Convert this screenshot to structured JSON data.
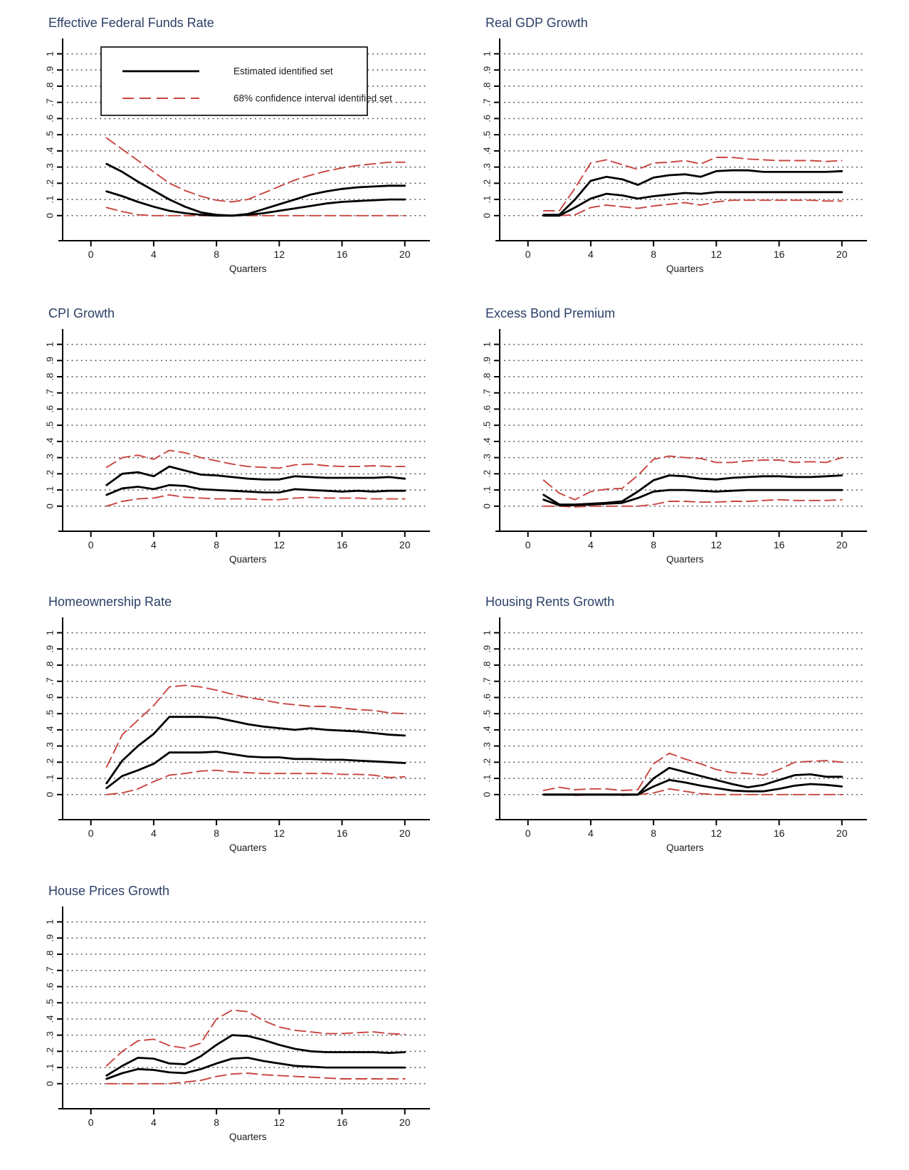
{
  "figure": {
    "description": "Impulse response functions over quarters, 7 panels",
    "xlabel": "Quarters"
  },
  "colors": {
    "title": "#2b3f67",
    "line_black": "#000000",
    "line_red": "#c8453f",
    "grid": "#4c4c4c",
    "axis": "#000000",
    "text": "#1a1a1a",
    "background": "#ffffff"
  },
  "legend": {
    "items": [
      {
        "label": "Estimated identified set",
        "style": "solid-black"
      },
      {
        "label": "68% confidence interval identified set",
        "style": "dashed-red"
      }
    ]
  },
  "axis": {
    "xlabel": "Quarters",
    "x_ticks": [
      0,
      4,
      8,
      12,
      16,
      20
    ],
    "y_ticks": [
      "0",
      ".1",
      ".2",
      ".3",
      ".4",
      ".5",
      ".6",
      ".7",
      ".8",
      ".9",
      "1"
    ],
    "xlim": [
      0,
      20
    ],
    "ylim": [
      0,
      1
    ],
    "grid": "dotted horizontal"
  },
  "chart_data": [
    {
      "type": "line",
      "title": "Effective Federal Funds Rate",
      "xlabel": "Quarters",
      "show_legend": true,
      "x": [
        1,
        2,
        3,
        4,
        5,
        6,
        7,
        8,
        9,
        10,
        11,
        12,
        13,
        14,
        15,
        16,
        17,
        18,
        19,
        20
      ],
      "series": [
        {
          "name": "68% confidence interval (upper bound)",
          "style": "dashed-red",
          "values": [
            0.48,
            0.41,
            0.34,
            0.27,
            0.2,
            0.155,
            0.12,
            0.095,
            0.085,
            0.1,
            0.14,
            0.18,
            0.22,
            0.25,
            0.275,
            0.295,
            0.31,
            0.32,
            0.33,
            0.33
          ]
        },
        {
          "name": "68% confidence interval (lower bound)",
          "style": "dashed-red",
          "values": [
            0.05,
            0.025,
            0.005,
            0,
            0,
            0,
            0,
            0,
            0,
            0,
            0,
            0,
            0,
            0,
            0,
            0,
            0,
            0,
            0,
            0
          ]
        },
        {
          "name": "Estimated identified set (upper bound)",
          "style": "solid-black",
          "values": [
            0.32,
            0.27,
            0.21,
            0.155,
            0.1,
            0.055,
            0.02,
            0.005,
            0.0,
            0.01,
            0.04,
            0.07,
            0.1,
            0.13,
            0.15,
            0.165,
            0.175,
            0.18,
            0.185,
            0.185
          ]
        },
        {
          "name": "Estimated identified set (lower bound)",
          "style": "solid-black",
          "values": [
            0.15,
            0.12,
            0.085,
            0.055,
            0.03,
            0.015,
            0.005,
            0.0,
            0.0,
            0.005,
            0.015,
            0.03,
            0.045,
            0.06,
            0.075,
            0.085,
            0.09,
            0.095,
            0.1,
            0.1
          ]
        }
      ]
    },
    {
      "type": "line",
      "title": "Real GDP Growth",
      "xlabel": "Quarters",
      "show_legend": false,
      "x": [
        1,
        2,
        3,
        4,
        5,
        6,
        7,
        8,
        9,
        10,
        11,
        12,
        13,
        14,
        15,
        16,
        17,
        18,
        19,
        20
      ],
      "series": [
        {
          "name": "68% confidence interval (upper bound)",
          "style": "dashed-red",
          "values": [
            0.03,
            0.03,
            0.17,
            0.325,
            0.345,
            0.315,
            0.285,
            0.325,
            0.33,
            0.34,
            0.32,
            0.36,
            0.36,
            0.35,
            0.345,
            0.34,
            0.34,
            0.34,
            0.335,
            0.34
          ]
        },
        {
          "name": "68% confidence interval (lower bound)",
          "style": "dashed-red",
          "values": [
            0.0,
            0.0,
            0.005,
            0.05,
            0.065,
            0.055,
            0.045,
            0.06,
            0.07,
            0.08,
            0.065,
            0.085,
            0.095,
            0.095,
            0.095,
            0.095,
            0.095,
            0.095,
            0.09,
            0.09
          ]
        },
        {
          "name": "Estimated identified set (upper bound)",
          "style": "solid-black",
          "values": [
            0.005,
            0.005,
            0.1,
            0.215,
            0.24,
            0.225,
            0.19,
            0.235,
            0.25,
            0.255,
            0.24,
            0.275,
            0.28,
            0.28,
            0.27,
            0.27,
            0.27,
            0.27,
            0.27,
            0.275
          ]
        },
        {
          "name": "Estimated identified set (lower bound)",
          "style": "solid-black",
          "values": [
            0.0,
            0.0,
            0.05,
            0.105,
            0.135,
            0.125,
            0.105,
            0.12,
            0.13,
            0.14,
            0.135,
            0.145,
            0.145,
            0.145,
            0.145,
            0.145,
            0.145,
            0.145,
            0.145,
            0.145
          ]
        }
      ]
    },
    {
      "type": "line",
      "title": "CPI Growth",
      "xlabel": "Quarters",
      "show_legend": false,
      "x": [
        1,
        2,
        3,
        4,
        5,
        6,
        7,
        8,
        9,
        10,
        11,
        12,
        13,
        14,
        15,
        16,
        17,
        18,
        19,
        20
      ],
      "series": [
        {
          "name": "68% confidence interval (upper bound)",
          "style": "dashed-red",
          "values": [
            0.24,
            0.3,
            0.315,
            0.29,
            0.345,
            0.33,
            0.3,
            0.28,
            0.26,
            0.245,
            0.24,
            0.235,
            0.255,
            0.26,
            0.25,
            0.245,
            0.245,
            0.25,
            0.245,
            0.245
          ]
        },
        {
          "name": "68% confidence interval (lower bound)",
          "style": "dashed-red",
          "values": [
            0.0,
            0.03,
            0.045,
            0.05,
            0.07,
            0.055,
            0.05,
            0.045,
            0.045,
            0.045,
            0.04,
            0.04,
            0.05,
            0.055,
            0.05,
            0.05,
            0.05,
            0.045,
            0.045,
            0.045
          ]
        },
        {
          "name": "Estimated identified set (upper bound)",
          "style": "solid-black",
          "values": [
            0.13,
            0.2,
            0.21,
            0.185,
            0.245,
            0.22,
            0.195,
            0.19,
            0.18,
            0.17,
            0.165,
            0.165,
            0.185,
            0.18,
            0.175,
            0.175,
            0.175,
            0.175,
            0.18,
            0.17
          ]
        },
        {
          "name": "Estimated identified set (lower bound)",
          "style": "solid-black",
          "values": [
            0.07,
            0.11,
            0.12,
            0.105,
            0.13,
            0.125,
            0.105,
            0.1,
            0.095,
            0.09,
            0.085,
            0.085,
            0.105,
            0.1,
            0.095,
            0.09,
            0.095,
            0.09,
            0.095,
            0.095
          ]
        }
      ]
    },
    {
      "type": "line",
      "title": "Excess Bond Premium",
      "xlabel": "Quarters",
      "show_legend": false,
      "x": [
        1,
        2,
        3,
        4,
        5,
        6,
        7,
        8,
        9,
        10,
        11,
        12,
        13,
        14,
        15,
        16,
        17,
        18,
        19,
        20
      ],
      "series": [
        {
          "name": "68% confidence interval (upper bound)",
          "style": "dashed-red",
          "values": [
            0.16,
            0.08,
            0.04,
            0.09,
            0.105,
            0.11,
            0.19,
            0.29,
            0.31,
            0.3,
            0.295,
            0.27,
            0.27,
            0.28,
            0.285,
            0.285,
            0.27,
            0.275,
            0.27,
            0.3
          ]
        },
        {
          "name": "68% confidence interval (lower bound)",
          "style": "dashed-red",
          "values": [
            0.0,
            0.0,
            -0.005,
            0.0,
            0.0,
            0.0,
            0.0,
            0.01,
            0.03,
            0.03,
            0.025,
            0.025,
            0.03,
            0.03,
            0.035,
            0.04,
            0.035,
            0.035,
            0.035,
            0.04
          ]
        },
        {
          "name": "Estimated identified set (upper bound)",
          "style": "solid-black",
          "values": [
            0.07,
            0.01,
            0.01,
            0.015,
            0.02,
            0.03,
            0.09,
            0.16,
            0.19,
            0.185,
            0.17,
            0.165,
            0.175,
            0.18,
            0.185,
            0.185,
            0.18,
            0.18,
            0.185,
            0.19
          ]
        },
        {
          "name": "Estimated identified set (lower bound)",
          "style": "solid-black",
          "values": [
            0.04,
            0.005,
            0.005,
            0.01,
            0.015,
            0.02,
            0.05,
            0.09,
            0.1,
            0.1,
            0.095,
            0.09,
            0.095,
            0.1,
            0.1,
            0.1,
            0.1,
            0.1,
            0.1,
            0.1
          ]
        }
      ]
    },
    {
      "type": "line",
      "title": "Homeownership Rate",
      "xlabel": "Quarters",
      "show_legend": false,
      "x": [
        1,
        2,
        3,
        4,
        5,
        6,
        7,
        8,
        9,
        10,
        11,
        12,
        13,
        14,
        15,
        16,
        17,
        18,
        19,
        20
      ],
      "series": [
        {
          "name": "68% confidence interval (upper bound)",
          "style": "dashed-red",
          "values": [
            0.17,
            0.37,
            0.46,
            0.55,
            0.665,
            0.675,
            0.665,
            0.645,
            0.62,
            0.6,
            0.585,
            0.565,
            0.555,
            0.545,
            0.545,
            0.535,
            0.525,
            0.52,
            0.505,
            0.5
          ]
        },
        {
          "name": "68% confidence interval (lower bound)",
          "style": "dashed-red",
          "values": [
            0.0,
            0.01,
            0.035,
            0.08,
            0.12,
            0.13,
            0.145,
            0.15,
            0.14,
            0.135,
            0.13,
            0.13,
            0.13,
            0.13,
            0.13,
            0.125,
            0.125,
            0.12,
            0.105,
            0.11
          ]
        },
        {
          "name": "Estimated identified set (upper bound)",
          "style": "solid-black",
          "values": [
            0.07,
            0.21,
            0.3,
            0.375,
            0.48,
            0.48,
            0.48,
            0.475,
            0.455,
            0.435,
            0.42,
            0.41,
            0.4,
            0.41,
            0.4,
            0.395,
            0.39,
            0.38,
            0.37,
            0.365
          ]
        },
        {
          "name": "Estimated identified set (lower bound)",
          "style": "solid-black",
          "values": [
            0.04,
            0.115,
            0.15,
            0.19,
            0.26,
            0.26,
            0.26,
            0.265,
            0.25,
            0.235,
            0.23,
            0.23,
            0.22,
            0.22,
            0.215,
            0.215,
            0.21,
            0.205,
            0.2,
            0.195
          ]
        }
      ]
    },
    {
      "type": "line",
      "title": "Housing Rents Growth",
      "xlabel": "Quarters",
      "show_legend": false,
      "x": [
        1,
        2,
        3,
        4,
        5,
        6,
        7,
        8,
        9,
        10,
        11,
        12,
        13,
        14,
        15,
        16,
        17,
        18,
        19,
        20
      ],
      "series": [
        {
          "name": "68% confidence interval (upper bound)",
          "style": "dashed-red",
          "values": [
            0.025,
            0.045,
            0.03,
            0.035,
            0.035,
            0.025,
            0.03,
            0.19,
            0.255,
            0.22,
            0.19,
            0.155,
            0.135,
            0.13,
            0.12,
            0.155,
            0.2,
            0.205,
            0.21,
            0.2
          ]
        },
        {
          "name": "68% confidence interval (lower bound)",
          "style": "dashed-red",
          "values": [
            0.0,
            0.0,
            -0.005,
            0.0,
            0.0,
            -0.005,
            0.0,
            0.01,
            0.035,
            0.02,
            0.005,
            0.0,
            0.0,
            0.0,
            0.0,
            0.0,
            0.0,
            0.0,
            0.0,
            0.0
          ]
        },
        {
          "name": "Estimated identified set (upper bound)",
          "style": "solid-black",
          "values": [
            0.0,
            0.0,
            0.0,
            0.0,
            0.0,
            0.0,
            0.0,
            0.1,
            0.165,
            0.14,
            0.115,
            0.09,
            0.065,
            0.045,
            0.06,
            0.09,
            0.12,
            0.125,
            0.11,
            0.11
          ]
        },
        {
          "name": "Estimated identified set (lower bound)",
          "style": "solid-black",
          "values": [
            0.0,
            0.0,
            0.0,
            0.0,
            0.0,
            0.0,
            0.0,
            0.05,
            0.09,
            0.075,
            0.055,
            0.04,
            0.025,
            0.02,
            0.02,
            0.035,
            0.055,
            0.065,
            0.06,
            0.05
          ]
        }
      ]
    },
    {
      "type": "line",
      "title": "House Prices Growth",
      "xlabel": "Quarters",
      "show_legend": false,
      "x": [
        1,
        2,
        3,
        4,
        5,
        6,
        7,
        8,
        9,
        10,
        11,
        12,
        13,
        14,
        15,
        16,
        17,
        18,
        19,
        20
      ],
      "series": [
        {
          "name": "68% confidence interval (upper bound)",
          "style": "dashed-red",
          "values": [
            0.11,
            0.2,
            0.265,
            0.275,
            0.235,
            0.22,
            0.25,
            0.4,
            0.455,
            0.445,
            0.39,
            0.35,
            0.33,
            0.32,
            0.31,
            0.31,
            0.315,
            0.32,
            0.31,
            0.305
          ]
        },
        {
          "name": "68% confidence interval (lower bound)",
          "style": "dashed-red",
          "values": [
            0.0,
            0.0,
            0.0,
            0.0,
            0.0,
            0.01,
            0.02,
            0.045,
            0.06,
            0.065,
            0.055,
            0.05,
            0.045,
            0.04,
            0.035,
            0.03,
            0.03,
            0.03,
            0.03,
            0.03
          ]
        },
        {
          "name": "Estimated identified set (upper bound)",
          "style": "solid-black",
          "values": [
            0.05,
            0.11,
            0.16,
            0.155,
            0.125,
            0.12,
            0.17,
            0.24,
            0.3,
            0.295,
            0.27,
            0.24,
            0.215,
            0.2,
            0.195,
            0.195,
            0.195,
            0.195,
            0.19,
            0.195
          ]
        },
        {
          "name": "Estimated identified set (lower bound)",
          "style": "solid-black",
          "values": [
            0.03,
            0.065,
            0.09,
            0.085,
            0.07,
            0.065,
            0.09,
            0.125,
            0.155,
            0.16,
            0.14,
            0.125,
            0.11,
            0.105,
            0.1,
            0.1,
            0.1,
            0.1,
            0.1,
            0.1
          ]
        }
      ]
    }
  ]
}
